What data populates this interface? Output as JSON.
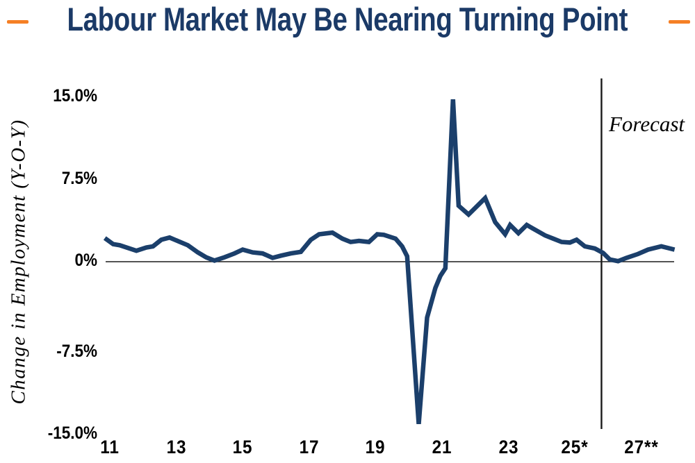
{
  "page": {
    "title": "Labour Market May Be Nearing Turning Point"
  },
  "chart_data": {
    "type": "line",
    "title": "Labour Market May Be Nearing Turning Point",
    "xlabel": "",
    "ylabel": "Change in Employment (Y-O-Y)",
    "grid": false,
    "legend": "none",
    "xlim": [
      2010.85,
      2028.3
    ],
    "ylim": [
      -15,
      15
    ],
    "x_ticks": [
      {
        "label": "11",
        "year": 2011
      },
      {
        "label": "13",
        "year": 2013
      },
      {
        "label": "15",
        "year": 2015
      },
      {
        "label": "17",
        "year": 2017
      },
      {
        "label": "19",
        "year": 2019
      },
      {
        "label": "21",
        "year": 2021
      },
      {
        "label": "23",
        "year": 2023
      },
      {
        "label": "25*",
        "year": 2025
      },
      {
        "label": "27**",
        "year": 2027
      }
    ],
    "y_ticks": [
      {
        "label": "15.0%",
        "value": 15
      },
      {
        "label": "7.5%",
        "value": 7.5
      },
      {
        "label": "0%",
        "value": 0
      },
      {
        "label": "-7.5%",
        "value": -7.5
      },
      {
        "label": "-15.0%",
        "value": -15
      }
    ],
    "forecast_label": "Forecast",
    "forecast_x": 2025.8,
    "colors": {
      "line": "#1B3F6B",
      "title": "#1B3A67",
      "accent": "#F58025",
      "axis": "#1a1a1a"
    },
    "series": [
      {
        "name": "Change in Employment (Y-O-Y)",
        "color": "#1B3F6B",
        "points": [
          [
            2010.85,
            2.15
          ],
          [
            2011.1,
            1.6
          ],
          [
            2011.3,
            1.5
          ],
          [
            2011.8,
            1.0
          ],
          [
            2012.1,
            1.3
          ],
          [
            2012.3,
            1.4
          ],
          [
            2012.55,
            2.0
          ],
          [
            2012.8,
            2.2
          ],
          [
            2013.35,
            1.5
          ],
          [
            2013.65,
            0.85
          ],
          [
            2013.9,
            0.4
          ],
          [
            2014.15,
            0.1
          ],
          [
            2014.45,
            0.4
          ],
          [
            2014.75,
            0.75
          ],
          [
            2015.0,
            1.1
          ],
          [
            2015.3,
            0.85
          ],
          [
            2015.6,
            0.75
          ],
          [
            2015.9,
            0.35
          ],
          [
            2016.15,
            0.55
          ],
          [
            2016.45,
            0.75
          ],
          [
            2016.75,
            0.9
          ],
          [
            2017.05,
            2.0
          ],
          [
            2017.3,
            2.5
          ],
          [
            2017.7,
            2.65
          ],
          [
            2018.0,
            2.1
          ],
          [
            2018.25,
            1.8
          ],
          [
            2018.5,
            1.9
          ],
          [
            2018.8,
            1.8
          ],
          [
            2019.05,
            2.5
          ],
          [
            2019.25,
            2.45
          ],
          [
            2019.6,
            2.1
          ],
          [
            2019.8,
            1.4
          ],
          [
            2019.95,
            0.5
          ],
          [
            2020.3,
            -14.8
          ],
          [
            2020.55,
            -5.1
          ],
          [
            2020.8,
            -2.4
          ],
          [
            2020.95,
            -1.3
          ],
          [
            2021.1,
            -0.6
          ],
          [
            2021.33,
            14.8
          ],
          [
            2021.5,
            5.1
          ],
          [
            2021.8,
            4.3
          ],
          [
            2022.3,
            5.8
          ],
          [
            2022.6,
            3.6
          ],
          [
            2022.9,
            2.5
          ],
          [
            2023.05,
            3.35
          ],
          [
            2023.3,
            2.6
          ],
          [
            2023.55,
            3.35
          ],
          [
            2023.75,
            3.0
          ],
          [
            2024.1,
            2.4
          ],
          [
            2024.35,
            2.1
          ],
          [
            2024.6,
            1.8
          ],
          [
            2024.85,
            1.75
          ],
          [
            2025.05,
            2.0
          ],
          [
            2025.3,
            1.4
          ],
          [
            2025.6,
            1.2
          ],
          [
            2025.85,
            0.8
          ],
          [
            2026.05,
            0.2
          ],
          [
            2026.3,
            0.05
          ],
          [
            2026.55,
            0.35
          ],
          [
            2026.9,
            0.7
          ],
          [
            2027.2,
            1.1
          ],
          [
            2027.6,
            1.4
          ],
          [
            2028.0,
            1.1
          ]
        ]
      }
    ]
  }
}
